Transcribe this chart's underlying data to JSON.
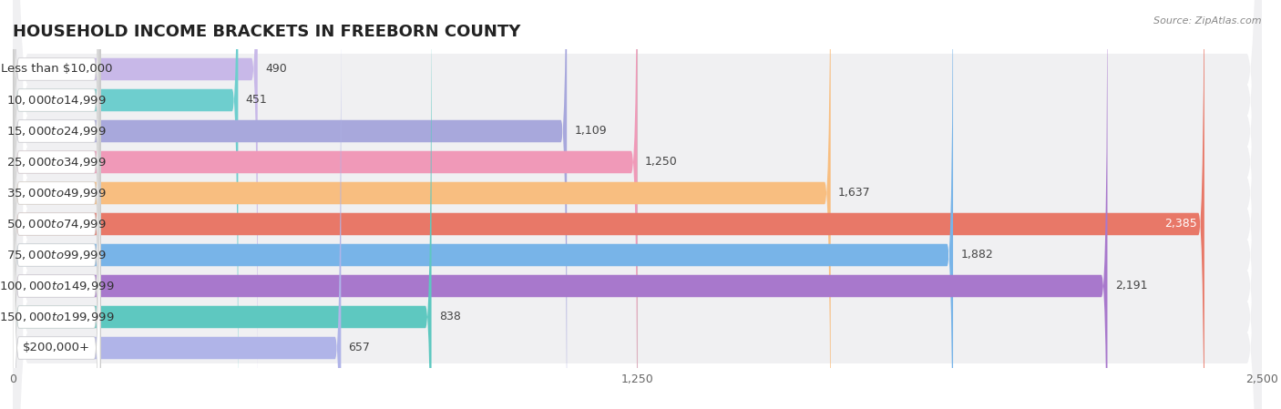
{
  "title": "HOUSEHOLD INCOME BRACKETS IN FREEBORN COUNTY",
  "source": "Source: ZipAtlas.com",
  "categories": [
    "Less than $10,000",
    "$10,000 to $14,999",
    "$15,000 to $24,999",
    "$25,000 to $34,999",
    "$35,000 to $49,999",
    "$50,000 to $74,999",
    "$75,000 to $99,999",
    "$100,000 to $149,999",
    "$150,000 to $199,999",
    "$200,000+"
  ],
  "values": [
    490,
    451,
    1109,
    1250,
    1637,
    2385,
    1882,
    2191,
    838,
    657
  ],
  "bar_colors": [
    "#c8b8e8",
    "#6ecece",
    "#a8a8dc",
    "#f099b8",
    "#f8be80",
    "#e87868",
    "#78b4e8",
    "#a878cc",
    "#5ec8c0",
    "#b0b4e8"
  ],
  "xlim": [
    0,
    2500
  ],
  "xticks": [
    0,
    1250,
    2500
  ],
  "background_color": "#ffffff",
  "row_bg_color": "#f0f0f0",
  "bar_bg_color": "#e0e0e0",
  "title_fontsize": 13,
  "label_fontsize": 9.5,
  "value_fontsize": 9
}
